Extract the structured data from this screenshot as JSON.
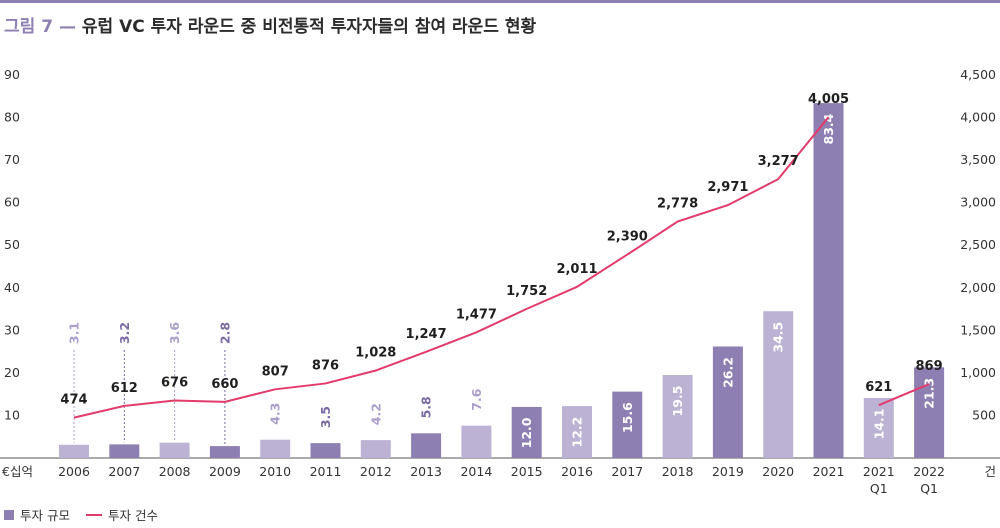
{
  "header": {
    "figure_label": "그림 7",
    "dash": "—",
    "title_text": "유럽 VC 투자 라운드 중 비전통적 투자자들의 참여 라운드 현황"
  },
  "colors": {
    "bar_dark": "#8e7fb3",
    "bar_light": "#bcb3d4",
    "line": "#e13c6b",
    "label_light": "#ab9fcb",
    "label_dark": "#7a6aa3"
  },
  "chart_data": {
    "type": "bar+line",
    "categories": [
      "2006",
      "2007",
      "2008",
      "2009",
      "2010",
      "2011",
      "2012",
      "2013",
      "2014",
      "2015",
      "2016",
      "2017",
      "2018",
      "2019",
      "2020",
      "2021",
      "2021\nQ1",
      "2022\nQ1"
    ],
    "series": [
      {
        "name": "투자 규모",
        "axis": "left",
        "type": "bar",
        "values": [
          3.1,
          3.2,
          3.6,
          2.8,
          4.3,
          3.5,
          4.2,
          5.8,
          7.6,
          12.0,
          12.2,
          15.6,
          19.5,
          26.2,
          34.5,
          83.4,
          14.1,
          21.3
        ],
        "labels": [
          "3.1",
          "3.2",
          "3.6",
          "2.8",
          "4.3",
          "3.5",
          "4.2",
          "5.8",
          "7.6",
          "12.0",
          "12.2",
          "15.6",
          "19.5",
          "26.2",
          "34.5",
          "83.4",
          "14.1",
          "21.3"
        ],
        "shade": [
          "light",
          "dark",
          "light",
          "dark",
          "light",
          "dark",
          "light",
          "dark",
          "light",
          "dark",
          "light",
          "dark",
          "light",
          "dark",
          "light",
          "dark",
          "light",
          "dark"
        ]
      },
      {
        "name": "투자 건수",
        "axis": "right",
        "type": "line",
        "values": [
          474,
          612,
          676,
          660,
          807,
          876,
          1028,
          1247,
          1477,
          1752,
          2011,
          2390,
          2778,
          2971,
          3277,
          4005,
          621,
          869
        ],
        "labels": [
          "474",
          "612",
          "676",
          "660",
          "807",
          "876",
          "1,028",
          "1,247",
          "1,477",
          "1,752",
          "2,011",
          "2,390",
          "2,778",
          "2,971",
          "3,277",
          "4,005",
          "621",
          "869"
        ],
        "segments": [
          [
            0,
            15
          ],
          [
            16,
            17
          ]
        ]
      }
    ],
    "y_left": {
      "unit": "€십억",
      "min": 0,
      "max": 90,
      "ticks": [
        "10",
        "20",
        "30",
        "40",
        "50",
        "60",
        "70",
        "80",
        "90"
      ],
      "tick_values": [
        10,
        20,
        30,
        40,
        50,
        60,
        70,
        80,
        90
      ]
    },
    "y_right": {
      "unit": "건",
      "min": 0,
      "max": 4500,
      "ticks": [
        "500",
        "1,000",
        "1,500",
        "2,000",
        "2,500",
        "3,000",
        "3,500",
        "4,000",
        "4,500"
      ],
      "tick_values": [
        500,
        1000,
        1500,
        2000,
        2500,
        3000,
        3500,
        4000,
        4500
      ]
    },
    "legend_position": "bottom-left",
    "grid": false
  }
}
